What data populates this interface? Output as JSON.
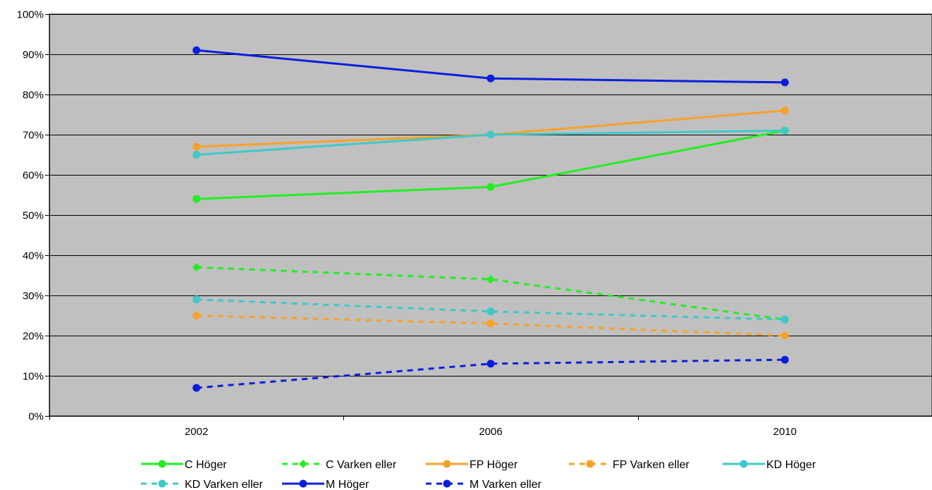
{
  "chart_data": {
    "type": "line",
    "title": "",
    "xlabel": "",
    "ylabel": "",
    "categories": [
      "2002",
      "2006",
      "2010"
    ],
    "ylim": [
      0,
      100
    ],
    "yticks": [
      0,
      10,
      20,
      30,
      40,
      50,
      60,
      70,
      80,
      90,
      100
    ],
    "ytick_labels": [
      "0%",
      "10%",
      "20%",
      "30%",
      "40%",
      "50%",
      "60%",
      "70%",
      "80%",
      "90%",
      "100%"
    ],
    "grid": true,
    "plot_background": "#c0c0c0",
    "legend_position": "bottom",
    "series": [
      {
        "name": "C Höger",
        "values": [
          54,
          57,
          71
        ],
        "color": "#22ee22",
        "dashed": false,
        "marker": "circle"
      },
      {
        "name": "C Varken eller",
        "values": [
          37,
          34,
          24
        ],
        "color": "#22ee22",
        "dashed": true,
        "marker": "diamond"
      },
      {
        "name": "FP Höger",
        "values": [
          67,
          70,
          76
        ],
        "color": "#f7a12a",
        "dashed": false,
        "marker": "circle"
      },
      {
        "name": "FP Varken eller",
        "values": [
          25,
          23,
          20
        ],
        "color": "#f7a12a",
        "dashed": true,
        "marker": "circle"
      },
      {
        "name": "KD Höger",
        "values": [
          65,
          70,
          71
        ],
        "color": "#3fc8c8",
        "dashed": false,
        "marker": "circle"
      },
      {
        "name": "KD Varken eller",
        "values": [
          29,
          26,
          24
        ],
        "color": "#3fc8c8",
        "dashed": true,
        "marker": "circle"
      },
      {
        "name": "M Höger",
        "values": [
          91,
          84,
          83
        ],
        "color": "#0a1ee0",
        "dashed": false,
        "marker": "circle"
      },
      {
        "name": "M Varken eller",
        "values": [
          7,
          13,
          14
        ],
        "color": "#0a1ee0",
        "dashed": true,
        "marker": "circle"
      }
    ]
  }
}
